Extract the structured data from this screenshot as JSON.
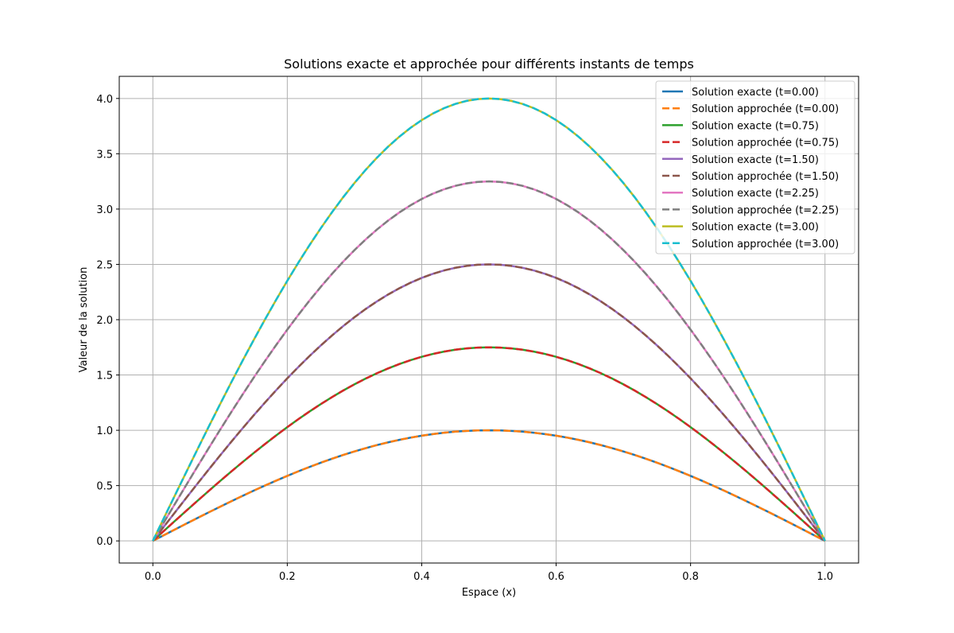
{
  "chart_data": {
    "type": "line",
    "title": "Solutions exacte et approchée pour différents instants de temps",
    "xlabel": "Espace (x)",
    "ylabel": "Valeur de la solution",
    "xlim": [
      -0.05,
      1.05
    ],
    "ylim": [
      -0.2,
      4.2
    ],
    "xticks": [
      "0.0",
      "0.2",
      "0.4",
      "0.6",
      "0.8",
      "1.0"
    ],
    "yticks": [
      "0.0",
      "0.5",
      "1.0",
      "1.5",
      "2.0",
      "2.5",
      "3.0",
      "3.5",
      "4.0"
    ],
    "grid": true,
    "legend_position": "top-right",
    "x_range": [
      0,
      1
    ],
    "peaks_at_x_0_5": [
      1.0,
      1.0,
      1.75,
      1.75,
      2.5,
      2.5,
      3.25,
      3.25,
      4.0,
      4.0
    ],
    "series": [
      {
        "name": "Solution exacte (t=0.00)",
        "color": "#1f77b4",
        "dash": "solid",
        "peak": 1.0
      },
      {
        "name": "Solution approchée (t=0.00)",
        "color": "#ff7f0e",
        "dash": "dashed",
        "peak": 1.0
      },
      {
        "name": "Solution exacte (t=0.75)",
        "color": "#2ca02c",
        "dash": "solid",
        "peak": 1.75
      },
      {
        "name": "Solution approchée (t=0.75)",
        "color": "#d62728",
        "dash": "dashed",
        "peak": 1.75
      },
      {
        "name": "Solution exacte (t=1.50)",
        "color": "#9467bd",
        "dash": "solid",
        "peak": 2.5
      },
      {
        "name": "Solution approchée (t=1.50)",
        "color": "#8c564b",
        "dash": "dashed",
        "peak": 2.5
      },
      {
        "name": "Solution exacte (t=2.25)",
        "color": "#e377c2",
        "dash": "solid",
        "peak": 3.25
      },
      {
        "name": "Solution approchée (t=2.25)",
        "color": "#7f7f7f",
        "dash": "dashed",
        "peak": 3.25
      },
      {
        "name": "Solution exacte (t=3.00)",
        "color": "#bcbd22",
        "dash": "solid",
        "peak": 4.0
      },
      {
        "name": "Solution approchée (t=3.00)",
        "color": "#17becf",
        "dash": "dashed",
        "peak": 4.0
      }
    ]
  }
}
